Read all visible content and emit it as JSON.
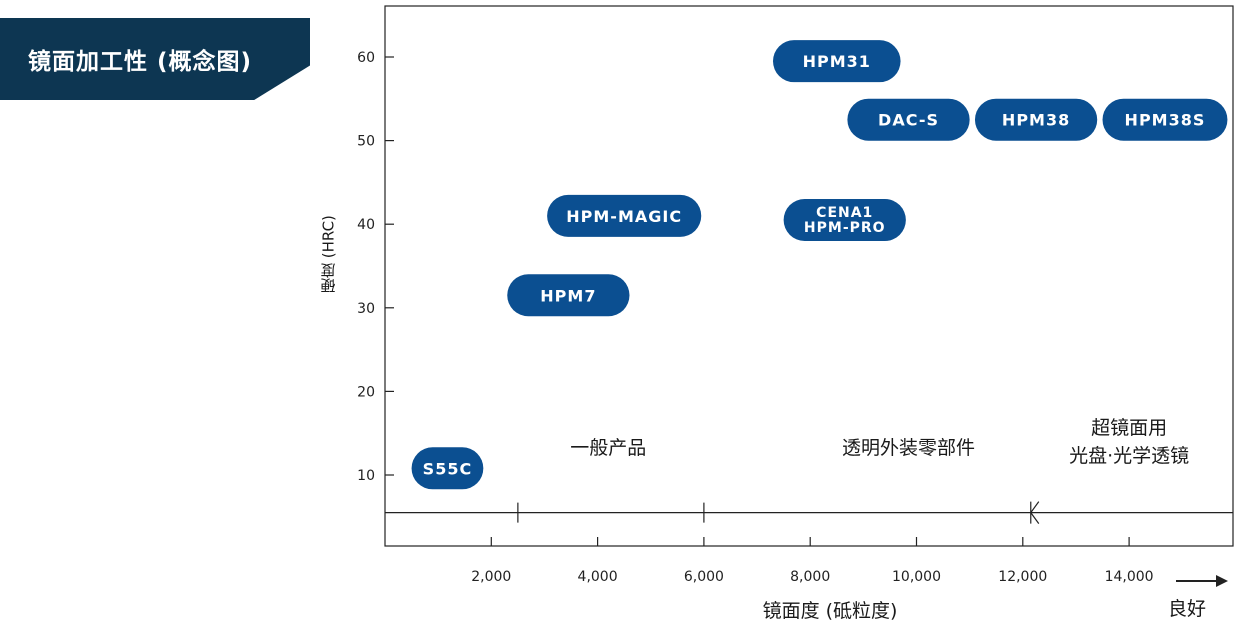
{
  "title": "镜面加工性 (概念图)",
  "chart_data": {
    "type": "scatter",
    "title": "镜面加工性 (概念图)",
    "xlabel": "镜面度 (砥粒度)",
    "ylabel": "硬度 (HRC)",
    "x_direction_label": "良好",
    "xlim": [
      0,
      16000
    ],
    "ylim": [
      4,
      65
    ],
    "x_ticks": [
      2000,
      4000,
      6000,
      8000,
      10000,
      12000,
      14000
    ],
    "x_tick_labels": [
      "2,000",
      "4,000",
      "6,000",
      "8,000",
      "10,000",
      "12,000",
      "14,000"
    ],
    "y_ticks": [
      10,
      20,
      30,
      40,
      50,
      60
    ],
    "y_tick_labels": [
      "10",
      "20",
      "30",
      "40",
      "50",
      "60"
    ],
    "grid": false,
    "grades": [
      {
        "label": "S55C",
        "x_range": [
          500,
          1850
        ],
        "y": 10.8
      },
      {
        "label": "HPM7",
        "x_range": [
          2300,
          4600
        ],
        "y": 31.5
      },
      {
        "label": "HPM-MAGIC",
        "x_range": [
          3050,
          5950
        ],
        "y": 41
      },
      {
        "label": "CENA1\nHPM-PRO",
        "x_range": [
          7500,
          9800
        ],
        "y": 40.5
      },
      {
        "label": "HPM31",
        "x_range": [
          7300,
          9700
        ],
        "y": 59.5
      },
      {
        "label": "DAC-S",
        "x_range": [
          8700,
          11000
        ],
        "y": 52.5
      },
      {
        "label": "HPM38",
        "x_range": [
          11100,
          13400
        ],
        "y": 52.5
      },
      {
        "label": "HPM38S",
        "x_range": [
          13500,
          15850
        ],
        "y": 52.5
      }
    ],
    "reference_line_y": 5.5,
    "zone_boundaries": [
      2500,
      6000,
      12150
    ],
    "zones": [
      {
        "label": "一般产品",
        "x_center": 4200
      },
      {
        "label": "透明外装零部件",
        "x_center": 9850
      },
      {
        "label": "超镜面用\n光盘·光学透镜",
        "x_center": 14000
      }
    ],
    "colors": {
      "grade_fill": "#0b4f91",
      "grade_text": "#ffffff",
      "axis": "#222222"
    }
  },
  "colors": {
    "banner": "#0d3652",
    "banner_text": "#ffffff"
  }
}
